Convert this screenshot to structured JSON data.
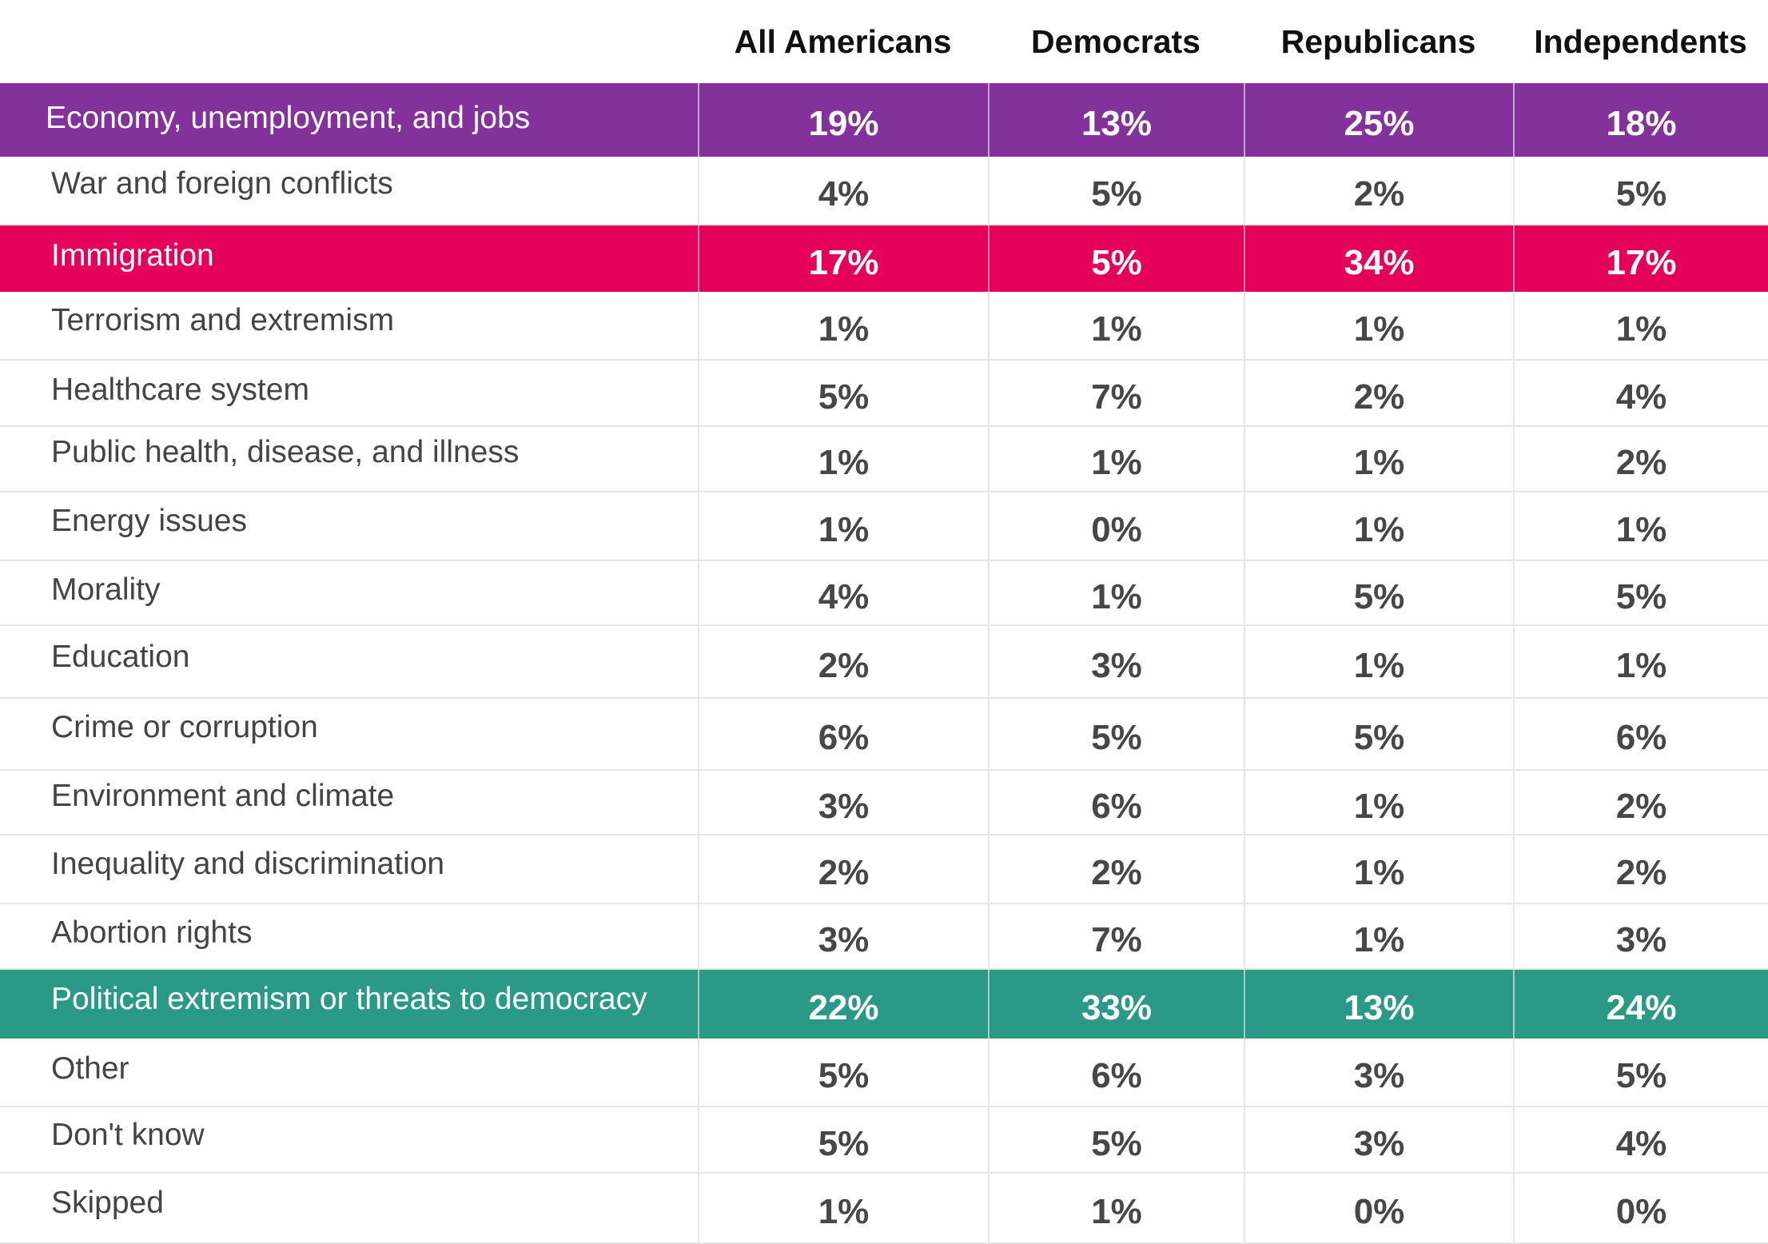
{
  "chart_data": {
    "type": "table",
    "columns": [
      "All Americans",
      "Democrats",
      "Republicans",
      "Independents"
    ],
    "rows": [
      {
        "label": "Economy, unemployment, and jobs",
        "values": [
          "19%",
          "13%",
          "25%",
          "18%"
        ],
        "highlight": "#84329b"
      },
      {
        "label": "War and foreign conflicts",
        "values": [
          "4%",
          "5%",
          "2%",
          "5%"
        ],
        "highlight": null
      },
      {
        "label": "Immigration",
        "values": [
          "17%",
          "5%",
          "34%",
          "17%"
        ],
        "highlight": "#e5005a"
      },
      {
        "label": "Terrorism and extremism",
        "values": [
          "1%",
          "1%",
          "1%",
          "1%"
        ],
        "highlight": null
      },
      {
        "label": "Healthcare system",
        "values": [
          "5%",
          "7%",
          "2%",
          "4%"
        ],
        "highlight": null
      },
      {
        "label": "Public health, disease, and illness",
        "values": [
          "1%",
          "1%",
          "1%",
          "2%"
        ],
        "highlight": null
      },
      {
        "label": "Energy issues",
        "values": [
          "1%",
          "0%",
          "1%",
          "1%"
        ],
        "highlight": null
      },
      {
        "label": "Morality",
        "values": [
          "4%",
          "1%",
          "5%",
          "5%"
        ],
        "highlight": null
      },
      {
        "label": "Education",
        "values": [
          "2%",
          "3%",
          "1%",
          "1%"
        ],
        "highlight": null
      },
      {
        "label": "Crime or corruption",
        "values": [
          "6%",
          "5%",
          "5%",
          "6%"
        ],
        "highlight": null
      },
      {
        "label": "Environment and climate",
        "values": [
          "3%",
          "6%",
          "1%",
          "2%"
        ],
        "highlight": null
      },
      {
        "label": "Inequality and discrimination",
        "values": [
          "2%",
          "2%",
          "1%",
          "2%"
        ],
        "highlight": null
      },
      {
        "label": "Abortion rights",
        "values": [
          "3%",
          "7%",
          "1%",
          "3%"
        ],
        "highlight": null
      },
      {
        "label": "Political extremism or threats to democracy",
        "values": [
          "22%",
          "33%",
          "13%",
          "24%"
        ],
        "highlight": "#2a9a86"
      },
      {
        "label": "Other",
        "values": [
          "5%",
          "6%",
          "3%",
          "5%"
        ],
        "highlight": null
      },
      {
        "label": "Don't know",
        "values": [
          "5%",
          "5%",
          "3%",
          "4%"
        ],
        "highlight": null
      },
      {
        "label": "Skipped",
        "values": [
          "1%",
          "1%",
          "0%",
          "0%"
        ],
        "highlight": null
      }
    ]
  }
}
